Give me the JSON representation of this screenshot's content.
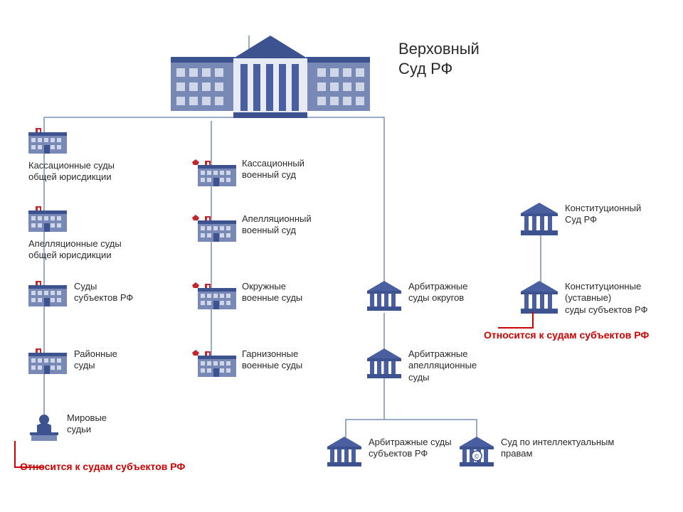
{
  "type": "tree",
  "background_color": "#ffffff",
  "line_color": "#7a8db5",
  "line_width": 1.5,
  "text_color": "#2a2a2a",
  "title_fontsize": 22,
  "label_fontsize": 13,
  "callout_color": "#cc0000",
  "callout_fontsize": 14,
  "palette": {
    "building_blue": "#5a6fa8",
    "building_roof": "#3d5390",
    "columns_blue": "#4a5fa0",
    "red": "#c1272d"
  },
  "title": "Верховный\nСуд РФ",
  "nodes": {
    "cass_general": "Кассационные суды\nобщей юрисдикции",
    "cass_military": "Кассационный\nвоенный суд",
    "appeal_general": "Апелляционные суды\nобщей юрисдикции",
    "appeal_military": "Апелляционный\nвоенный суд",
    "subject_courts": "Суды\nсубъектов РФ",
    "district_military": "Окружные\nвоенные суды",
    "rayonnye": "Районные\nсуды",
    "garrison_military": "Гарнизонные\nвоенные суды",
    "mirovye": "Мировые\nсудьи",
    "arb_okrug": "Арбитражные\nсуды округов",
    "arb_appeal": "Арбитражные\nапелляционные\nсуды",
    "arb_subject": "Арбитражные суды\nсубъектов РФ",
    "ip_court": "Суд по интеллектуальным\nправам",
    "const_rf": "Конституционный\nСуд РФ",
    "const_subject": "Конституционные\n(уставные)\nсуды субъектов РФ"
  },
  "callouts": {
    "c1": "Относится к  судам субъектов РФ",
    "c2": "Относится к  судам субъектов РФ"
  }
}
